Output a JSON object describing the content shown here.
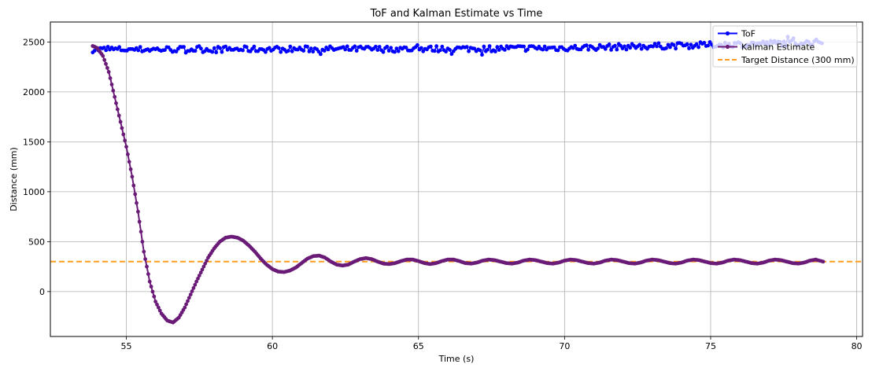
{
  "chart_data": {
    "type": "line",
    "title": "ToF and Kalman Estimate vs Time",
    "xlabel": "Time (s)",
    "ylabel": "Distance (mm)",
    "xlim": [
      52.4,
      80.2
    ],
    "ylim": [
      -450,
      2700
    ],
    "xticks": [
      55,
      60,
      65,
      70,
      75,
      80
    ],
    "yticks": [
      0,
      500,
      1000,
      1500,
      2000,
      2500
    ],
    "grid": true,
    "legend_position": "top-right",
    "tof_sample_interval_s": 0.065,
    "series": [
      {
        "name": "ToF",
        "color": "#0000ff",
        "marker": "circle",
        "x_start": 53.85,
        "x_end": 78.85,
        "baseline": 2425,
        "noise_amplitude": 30,
        "trend_points": [
          [
            53.85,
            2425
          ],
          [
            65.0,
            2430
          ],
          [
            70.0,
            2440
          ],
          [
            75.0,
            2470
          ],
          [
            78.85,
            2500
          ]
        ]
      },
      {
        "name": "Kalman Estimate",
        "color": "#6a1b77",
        "marker": "circle",
        "points": [
          [
            53.85,
            2460
          ],
          [
            54.0,
            2440
          ],
          [
            54.2,
            2360
          ],
          [
            54.4,
            2200
          ],
          [
            54.6,
            1950
          ],
          [
            54.8,
            1700
          ],
          [
            55.0,
            1450
          ],
          [
            55.2,
            1150
          ],
          [
            55.4,
            800
          ],
          [
            55.6,
            400
          ],
          [
            55.8,
            100
          ],
          [
            56.0,
            -100
          ],
          [
            56.2,
            -220
          ],
          [
            56.4,
            -290
          ],
          [
            56.6,
            -310
          ],
          [
            56.8,
            -260
          ],
          [
            57.0,
            -160
          ],
          [
            57.2,
            -30
          ],
          [
            57.4,
            100
          ],
          [
            57.6,
            220
          ],
          [
            57.8,
            340
          ],
          [
            58.0,
            430
          ],
          [
            58.2,
            500
          ],
          [
            58.4,
            540
          ],
          [
            58.6,
            550
          ],
          [
            58.8,
            540
          ],
          [
            59.0,
            510
          ],
          [
            59.2,
            460
          ],
          [
            59.4,
            400
          ],
          [
            59.6,
            330
          ],
          [
            59.8,
            270
          ],
          [
            60.0,
            225
          ],
          [
            60.2,
            200
          ],
          [
            60.4,
            195
          ],
          [
            60.6,
            210
          ],
          [
            60.8,
            240
          ],
          [
            61.0,
            285
          ],
          [
            61.2,
            330
          ],
          [
            61.4,
            355
          ],
          [
            61.6,
            360
          ],
          [
            61.8,
            340
          ],
          [
            62.0,
            300
          ],
          [
            62.2,
            270
          ],
          [
            62.4,
            260
          ],
          [
            62.6,
            270
          ],
          [
            62.8,
            300
          ],
          [
            63.0,
            325
          ],
          [
            63.2,
            335
          ],
          [
            63.4,
            325
          ],
          [
            63.6,
            300
          ],
          [
            63.8,
            280
          ],
          [
            64.0,
            275
          ],
          [
            64.2,
            285
          ],
          [
            64.4,
            305
          ],
          [
            64.6,
            320
          ],
          [
            64.8,
            320
          ],
          [
            65.0,
            305
          ],
          [
            65.2,
            285
          ],
          [
            65.4,
            275
          ],
          [
            65.6,
            285
          ],
          [
            65.8,
            305
          ],
          [
            66.0,
            320
          ],
          [
            66.2,
            320
          ],
          [
            66.4,
            305
          ],
          [
            66.6,
            285
          ],
          [
            66.8,
            280
          ],
          [
            67.0,
            290
          ],
          [
            67.2,
            310
          ],
          [
            67.4,
            320
          ],
          [
            67.6,
            315
          ],
          [
            67.8,
            300
          ],
          [
            68.0,
            285
          ],
          [
            68.2,
            280
          ],
          [
            68.4,
            290
          ],
          [
            68.6,
            310
          ],
          [
            68.8,
            320
          ],
          [
            69.0,
            315
          ],
          [
            69.2,
            300
          ],
          [
            69.4,
            285
          ],
          [
            69.6,
            280
          ],
          [
            69.8,
            290
          ],
          [
            70.0,
            310
          ],
          [
            70.2,
            320
          ],
          [
            70.4,
            315
          ],
          [
            70.6,
            300
          ],
          [
            70.8,
            285
          ],
          [
            71.0,
            280
          ],
          [
            71.2,
            290
          ],
          [
            71.4,
            310
          ],
          [
            71.6,
            320
          ],
          [
            71.8,
            315
          ],
          [
            72.0,
            300
          ],
          [
            72.2,
            285
          ],
          [
            72.4,
            280
          ],
          [
            72.6,
            290
          ],
          [
            72.8,
            310
          ],
          [
            73.0,
            320
          ],
          [
            73.2,
            315
          ],
          [
            73.4,
            300
          ],
          [
            73.6,
            285
          ],
          [
            73.8,
            280
          ],
          [
            74.0,
            290
          ],
          [
            74.2,
            310
          ],
          [
            74.4,
            320
          ],
          [
            74.6,
            315
          ],
          [
            74.8,
            300
          ],
          [
            75.0,
            285
          ],
          [
            75.2,
            280
          ],
          [
            75.4,
            290
          ],
          [
            75.6,
            310
          ],
          [
            75.8,
            320
          ],
          [
            76.0,
            315
          ],
          [
            76.2,
            300
          ],
          [
            76.4,
            285
          ],
          [
            76.6,
            280
          ],
          [
            76.8,
            290
          ],
          [
            77.0,
            310
          ],
          [
            77.2,
            320
          ],
          [
            77.4,
            315
          ],
          [
            77.6,
            300
          ],
          [
            77.8,
            285
          ],
          [
            78.0,
            280
          ],
          [
            78.2,
            290
          ],
          [
            78.4,
            310
          ],
          [
            78.6,
            320
          ],
          [
            78.85,
            300
          ]
        ]
      },
      {
        "name": "Target Distance (300 mm)",
        "color": "#ff9d1f",
        "style": "dashed",
        "value": 300
      }
    ]
  }
}
